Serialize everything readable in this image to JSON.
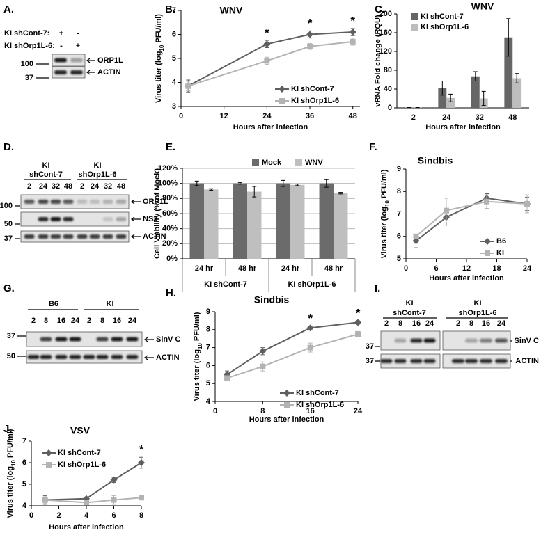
{
  "chart_data": [
    {
      "type": "line",
      "panel_label": "B.",
      "title": "WNV",
      "xlabel": "Hours after infection",
      "ylabel": [
        "Virus titer (log",
        "10",
        " PFU/ml)"
      ],
      "x": [
        2,
        24,
        36,
        48
      ],
      "xlim": [
        0,
        50
      ],
      "xticks": [
        0,
        12,
        24,
        36,
        48
      ],
      "ylim": [
        3,
        7
      ],
      "yticks": [
        3,
        4,
        5,
        6,
        7
      ],
      "significance": [
        null,
        "*",
        "*",
        "*"
      ],
      "legend": "lower right",
      "series": [
        {
          "name": "KI shCont-7",
          "color": "#5f5f5f",
          "marker": "diamond",
          "values": [
            3.85,
            5.6,
            6.0,
            6.1
          ],
          "errors": [
            0.25,
            0.15,
            0.15,
            0.15
          ]
        },
        {
          "name": "KI shOrp1L-6",
          "color": "#b3b3b3",
          "marker": "square",
          "values": [
            3.85,
            4.9,
            5.5,
            5.7
          ],
          "errors": [
            0.2,
            0.15,
            0.12,
            0.15
          ]
        }
      ]
    },
    {
      "type": "bar",
      "panel_label": "C.",
      "title": "WNV",
      "xlabel": "Hours after infection",
      "ylabel": "vRNA Fold change (RQU)",
      "categories": [
        "2",
        "24",
        "32",
        "48"
      ],
      "ylim": [
        0,
        200
      ],
      "yticks": [
        0,
        40,
        80,
        120,
        160,
        200
      ],
      "legend": "upper left",
      "series": [
        {
          "name": "KI shCont-7",
          "color": "#666666",
          "values": [
            0.5,
            42,
            67,
            150
          ],
          "errors": [
            0.3,
            15,
            10,
            40
          ]
        },
        {
          "name": "KI shOrp1L-6",
          "color": "#bdbdbd",
          "values": [
            0.5,
            21,
            20,
            63
          ],
          "errors": [
            0.3,
            8,
            15,
            10
          ]
        }
      ]
    },
    {
      "type": "bar",
      "panel_label": "E.",
      "ylabel": "Cell Viability (% of Mock)",
      "categories": [
        "24 hr",
        "48 hr",
        "24 hr",
        "48 hr"
      ],
      "groups": [
        "KI shCont-7",
        "KI shOrp1L-6"
      ],
      "ylim": [
        0,
        120
      ],
      "yticks": [
        {
          "value": 0,
          "label": "0%"
        },
        {
          "value": 20,
          "label": "20%"
        },
        {
          "value": 40,
          "label": "40%"
        },
        {
          "value": 60,
          "label": "60%"
        },
        {
          "value": 80,
          "label": "80%"
        },
        {
          "value": 100,
          "label": "100%"
        },
        {
          "value": 120,
          "label": "120%"
        }
      ],
      "grid": true,
      "legend": "top",
      "series": [
        {
          "name": "Mock",
          "color": "#6b6b6b",
          "values": [
            100,
            100,
            100,
            100
          ],
          "errors": [
            3,
            1,
            4,
            5
          ]
        },
        {
          "name": "WNV",
          "color": "#bfbfbf",
          "values": [
            92,
            89,
            98,
            87
          ],
          "errors": [
            1,
            7,
            1,
            1
          ]
        }
      ]
    },
    {
      "type": "line",
      "panel_label": "F.",
      "title": "Sindbis",
      "xlabel": "Hours after infection",
      "ylabel": [
        "Virus titer (log",
        "10",
        " PFU/ml)"
      ],
      "x": [
        2,
        8,
        16,
        24
      ],
      "xlim": [
        0,
        24
      ],
      "xticks": [
        0,
        6,
        12,
        18,
        24
      ],
      "ylim": [
        5,
        9
      ],
      "yticks": [
        5,
        6,
        7,
        8,
        9
      ],
      "legend": "lower right",
      "series": [
        {
          "name": "B6",
          "color": "#5f5f5f",
          "marker": "diamond",
          "values": [
            5.8,
            6.85,
            7.7,
            7.45
          ],
          "errors": [
            0.3,
            0.35,
            0.2,
            0.3
          ]
        },
        {
          "name": "KI",
          "color": "#b3b3b3",
          "marker": "square",
          "values": [
            6.0,
            7.15,
            7.55,
            7.45
          ],
          "errors": [
            0.5,
            0.55,
            0.3,
            0.4
          ]
        }
      ]
    },
    {
      "type": "line",
      "panel_label": "H.",
      "title": "Sindbis",
      "xlabel": "Hours after infection",
      "ylabel": [
        "Virus titer (log",
        "10",
        " PFU/ml)"
      ],
      "x": [
        2,
        8,
        16,
        24
      ],
      "xlim": [
        0,
        24
      ],
      "xticks": [
        0,
        8,
        16,
        24
      ],
      "ylim": [
        4,
        9
      ],
      "yticks": [
        4,
        5,
        6,
        7,
        8,
        9
      ],
      "significance": [
        null,
        null,
        "*",
        "*"
      ],
      "legend": "lower right",
      "series": [
        {
          "name": "KI shCont-7",
          "color": "#5f5f5f",
          "marker": "diamond",
          "values": [
            5.5,
            6.8,
            8.1,
            8.4
          ],
          "errors": [
            0.2,
            0.2,
            0.1,
            0.1
          ]
        },
        {
          "name": "KI shOrp1L-6",
          "color": "#b3b3b3",
          "marker": "square",
          "values": [
            5.3,
            5.95,
            7.0,
            7.75
          ],
          "errors": [
            0.1,
            0.25,
            0.25,
            0.15
          ]
        }
      ]
    },
    {
      "type": "line",
      "panel_label": "J.",
      "title": "VSV",
      "xlabel": "Hours after infection",
      "ylabel": [
        "Virus titer (log",
        "10",
        " PFU/ml)"
      ],
      "x": [
        1,
        4,
        6,
        8
      ],
      "xlim": [
        0,
        8
      ],
      "xticks": [
        0,
        2,
        4,
        6,
        8
      ],
      "ylim": [
        4,
        7
      ],
      "yticks": [
        4,
        5,
        6,
        7
      ],
      "significance": [
        null,
        null,
        null,
        "*"
      ],
      "legend": "upper left",
      "series": [
        {
          "name": "KI shCont-7",
          "color": "#5f5f5f",
          "marker": "diamond",
          "values": [
            4.27,
            4.33,
            5.2,
            6.0
          ],
          "errors": [
            0.2,
            0.07,
            0.12,
            0.25
          ]
        },
        {
          "name": "KI shOrp1L-6",
          "color": "#b3b3b3",
          "marker": "square",
          "values": [
            4.27,
            4.15,
            4.27,
            4.38
          ],
          "errors": [
            0.15,
            0.12,
            0.2,
            0.08
          ]
        }
      ]
    }
  ],
  "blots": {
    "A": {
      "label": "A.",
      "conditions": [
        {
          "name": "KI shCont-7:",
          "marks": [
            "+",
            "-"
          ]
        },
        {
          "name": "KI shOrp1L-6:",
          "marks": [
            "-",
            "+"
          ]
        }
      ],
      "bands": [
        "ORP1L",
        "ACTIN"
      ],
      "markers": [
        "100",
        "37"
      ]
    },
    "D": {
      "label": "D.",
      "groups": [
        {
          "line1": "KI",
          "line2": "shCont-7",
          "lanes": [
            "2",
            "24",
            "32",
            "48"
          ]
        },
        {
          "line1": "KI",
          "line2": "shOrp1L-6",
          "lanes": [
            "2",
            "24",
            "32",
            "48"
          ]
        }
      ],
      "bands": [
        "ORP1L",
        "NS3",
        "ACTIN"
      ],
      "markers": [
        "100",
        "50",
        "37"
      ]
    },
    "G": {
      "label": "G.",
      "groups": [
        {
          "name": "B6",
          "lanes": [
            "2",
            "8",
            "16",
            "24"
          ]
        },
        {
          "name": "KI",
          "lanes": [
            "2",
            "8",
            "16",
            "24"
          ]
        }
      ],
      "bands": [
        "SinV C",
        "ACTIN"
      ],
      "markers": [
        "37",
        "50"
      ]
    },
    "I": {
      "label": "I.",
      "groups": [
        {
          "line1": "KI",
          "line2": "shCont-7",
          "lanes": [
            "2",
            "8",
            "16",
            "24"
          ]
        },
        {
          "line1": "KI",
          "line2": "shOrp1L-6",
          "lanes": [
            "2",
            "8",
            "16",
            "24"
          ]
        }
      ],
      "bands": [
        "SinV C",
        "ACTIN"
      ],
      "markers": [
        "37",
        "37"
      ]
    }
  }
}
